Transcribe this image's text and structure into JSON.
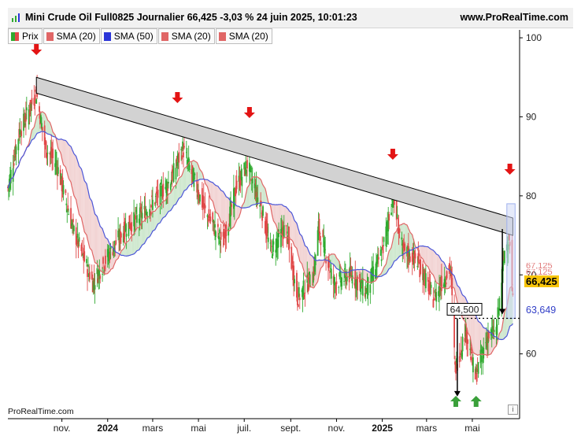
{
  "header": {
    "title": "Mini Crude Oil Full0825 Journalier 66,425 -3,03 % 24 juin 2025, 10:01:23",
    "site": "www.ProRealTime.com"
  },
  "legend": [
    {
      "label": "Prix",
      "kind": "price",
      "colors": [
        "#2faa2f",
        "#e04848"
      ]
    },
    {
      "label": "SMA (20)",
      "kind": "swatch",
      "color": "#e06666"
    },
    {
      "label": "SMA (50)",
      "kind": "swatch",
      "color": "#2b35d8"
    },
    {
      "label": "SMA (20)",
      "kind": "swatch",
      "color": "#e06666"
    },
    {
      "label": "SMA (20)",
      "kind": "swatch",
      "color": "#e06666"
    }
  ],
  "footer": {
    "brand": "ProRealTime.com",
    "info_icon": "i"
  },
  "price_tags": {
    "last": "66,425",
    "sma50": "63,649",
    "ghost1": "67,125",
    "ghost2": "67,125"
  },
  "colors": {
    "up": "#2faa2f",
    "down": "#e04848",
    "sma20": "#e06666",
    "sma50": "#4b55d8",
    "channel_fill": "#d2d2d2",
    "arrow_down": "#e31414",
    "arrow_up": "#3aa03a",
    "highlight": "#cfd8f5",
    "last_tag": "#f7c40a"
  },
  "chart_data": {
    "type": "candlestick",
    "y_axis": {
      "ticks": [
        60,
        70,
        80,
        90,
        100
      ],
      "range": [
        52,
        101
      ]
    },
    "x_axis": {
      "ticks": [
        {
          "label": "nov.",
          "date": "2023-11-01",
          "bold": false
        },
        {
          "label": "2024",
          "date": "2024-01-01",
          "bold": true
        },
        {
          "label": "mars",
          "date": "2024-03-01",
          "bold": false
        },
        {
          "label": "mai",
          "date": "2024-05-01",
          "bold": false
        },
        {
          "label": "juil.",
          "date": "2024-07-01",
          "bold": false
        },
        {
          "label": "sept.",
          "date": "2024-09-01",
          "bold": false
        },
        {
          "label": "nov.",
          "date": "2024-11-01",
          "bold": false
        },
        {
          "label": "2025",
          "date": "2025-01-01",
          "bold": true
        },
        {
          "label": "mars",
          "date": "2025-03-01",
          "bold": false
        },
        {
          "label": "mai",
          "date": "2025-05-01",
          "bold": false
        }
      ],
      "range": [
        "2023-08-21",
        "2025-07-03"
      ]
    },
    "price_anchors": [
      [
        "2023-08-21",
        81
      ],
      [
        "2023-09-05",
        88
      ],
      [
        "2023-09-28",
        93
      ],
      [
        "2023-10-10",
        86
      ],
      [
        "2023-10-25",
        84
      ],
      [
        "2023-11-15",
        76
      ],
      [
        "2023-12-12",
        69
      ],
      [
        "2024-01-05",
        73
      ],
      [
        "2024-01-25",
        76
      ],
      [
        "2024-02-20",
        78
      ],
      [
        "2024-03-25",
        82
      ],
      [
        "2024-04-10",
        86
      ],
      [
        "2024-04-25",
        82
      ],
      [
        "2024-05-10",
        78
      ],
      [
        "2024-06-03",
        74
      ],
      [
        "2024-06-20",
        81
      ],
      [
        "2024-07-05",
        84
      ],
      [
        "2024-07-25",
        78
      ],
      [
        "2024-08-05",
        73
      ],
      [
        "2024-08-25",
        76
      ],
      [
        "2024-09-10",
        67
      ],
      [
        "2024-10-01",
        70
      ],
      [
        "2024-10-08",
        76
      ],
      [
        "2024-10-28",
        69
      ],
      [
        "2024-11-20",
        70
      ],
      [
        "2024-12-10",
        68
      ],
      [
        "2025-01-01",
        73
      ],
      [
        "2025-01-15",
        80
      ],
      [
        "2025-01-28",
        73
      ],
      [
        "2025-02-15",
        72
      ],
      [
        "2025-03-10",
        67
      ],
      [
        "2025-04-02",
        71
      ],
      [
        "2025-04-08",
        58
      ],
      [
        "2025-04-22",
        63
      ],
      [
        "2025-05-05",
        57
      ],
      [
        "2025-05-20",
        62
      ],
      [
        "2025-06-02",
        63
      ],
      [
        "2025-06-13",
        73
      ],
      [
        "2025-06-19",
        75
      ],
      [
        "2025-06-24",
        66.4
      ]
    ],
    "series": [
      {
        "name": "Prix",
        "kind": "candles"
      },
      {
        "name": "SMA (20)",
        "kind": "sma",
        "period": 20
      },
      {
        "name": "SMA (50)",
        "kind": "sma",
        "period": 50
      }
    ],
    "resistance_channel": {
      "start": [
        "2023-09-28",
        95,
        93
      ],
      "end": [
        "2025-06-24",
        77.2,
        75.0
      ]
    },
    "horizontal_level": {
      "value": 64.5,
      "label": "64,500",
      "from": "2025-04-08",
      "to": "2025-06-24"
    },
    "down_arrows_dates": [
      "2023-09-28",
      "2024-04-03",
      "2024-07-08",
      "2025-01-15",
      "2025-06-20"
    ],
    "up_arrows_dates": [
      "2025-04-09",
      "2025-05-06"
    ],
    "projection_arrows": [
      {
        "date": "2025-04-11",
        "from": 64.5,
        "to": 54.6
      },
      {
        "date": "2025-06-10",
        "from": 75.8,
        "to": 65.0
      }
    ],
    "highlight_box": {
      "from": "2025-06-16",
      "to": "2025-06-27",
      "top": 79,
      "bottom": 64.5
    }
  }
}
